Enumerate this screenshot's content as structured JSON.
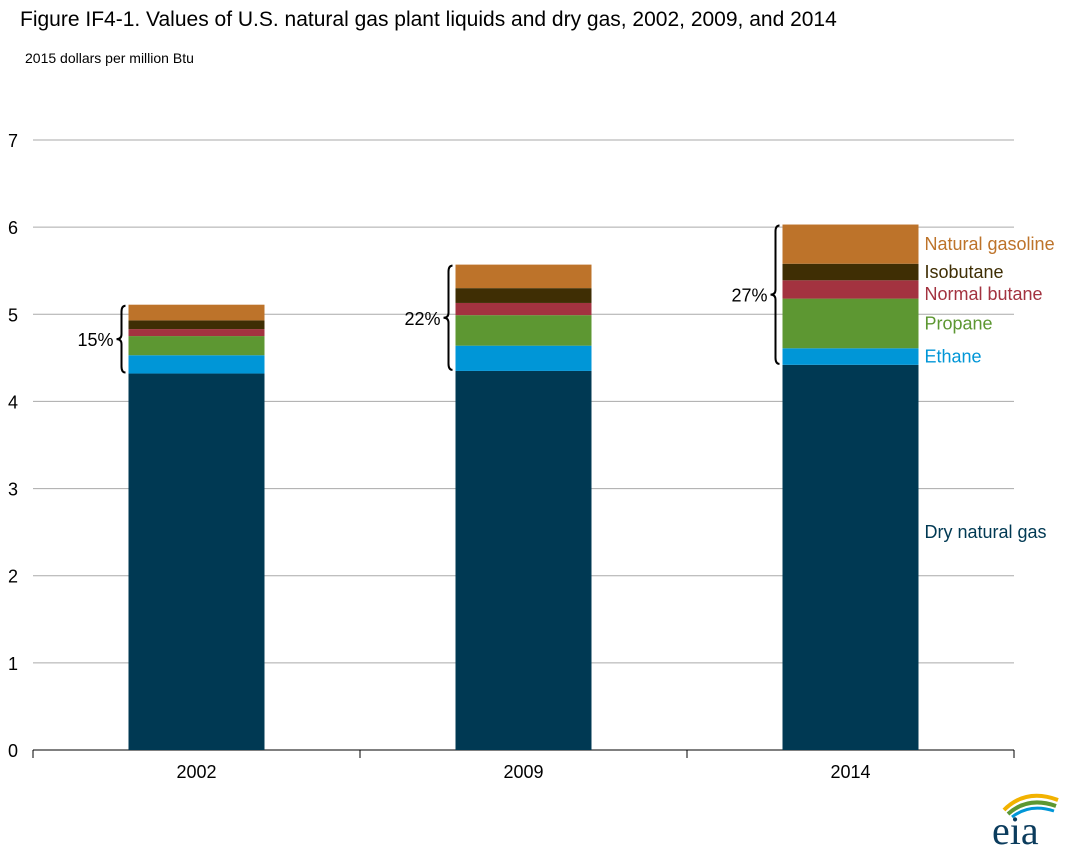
{
  "title": "Figure IF4-1. Values of U.S. natural gas plant liquids and dry gas, 2002, 2009, and 2014",
  "subtitle": "2015 dollars per million Btu",
  "logo_text": "eia",
  "colors": {
    "Dry natural gas": "#003953",
    "Ethane": "#0096d7",
    "Propane": "#5d9732",
    "Normal butane": "#a33340",
    "Isobutane": "#3f2e04",
    "Natural gasoline": "#bd732a",
    "grid": "#aaaaaa",
    "logo_blue": "#0096d7",
    "logo_green": "#5d9732",
    "logo_yellow": "#f2b200",
    "logo_text": "#0b3c5d"
  },
  "chart_data": {
    "type": "bar",
    "stacked": true,
    "title": "Figure IF4-1. Values of U.S. natural gas plant liquids and dry gas, 2002, 2009, and 2014",
    "ylabel": "2015 dollars per million Btu",
    "xlabel": "",
    "ylim": [
      0,
      7
    ],
    "yticks": [
      0,
      1,
      2,
      3,
      4,
      5,
      6,
      7
    ],
    "grid": true,
    "categories": [
      "2002",
      "2009",
      "2014"
    ],
    "series": [
      {
        "name": "Dry natural gas",
        "values": [
          4.32,
          4.35,
          4.42
        ]
      },
      {
        "name": "Ethane",
        "values": [
          0.21,
          0.29,
          0.19
        ]
      },
      {
        "name": "Propane",
        "values": [
          0.22,
          0.35,
          0.57
        ]
      },
      {
        "name": "Normal butane",
        "values": [
          0.08,
          0.14,
          0.21
        ]
      },
      {
        "name": "Isobutane",
        "values": [
          0.1,
          0.17,
          0.19
        ]
      },
      {
        "name": "Natural gasoline",
        "values": [
          0.18,
          0.27,
          0.45
        ]
      }
    ],
    "share_annotations": [
      "15%",
      "22%",
      "27%"
    ],
    "legend": "right, labels next to 2014 bar"
  }
}
